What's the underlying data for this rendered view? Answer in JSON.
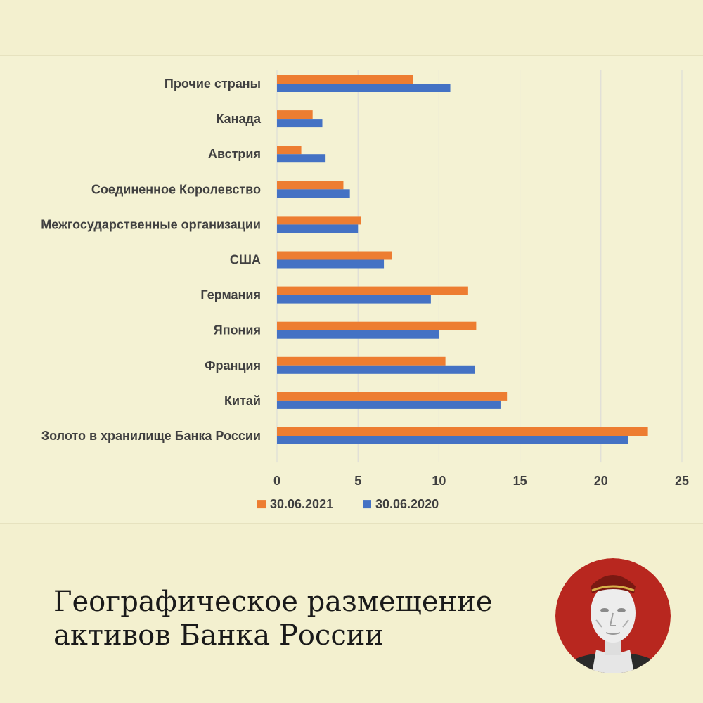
{
  "chart_data": {
    "type": "bar",
    "orientation": "horizontal",
    "categories": [
      "Прочие страны",
      "Канада",
      "Австрия",
      "Соединенное Королевство",
      "Межгосударственные организации",
      "США",
      "Германия",
      "Япония",
      "Франция",
      "Китай",
      "Золото в хранилище Банка России"
    ],
    "series": [
      {
        "name": "30.06.2021",
        "color": "#ed7d31",
        "values": [
          8.4,
          2.2,
          1.5,
          4.1,
          5.2,
          7.1,
          11.8,
          12.3,
          10.4,
          14.2,
          22.9
        ]
      },
      {
        "name": "30.06.2020",
        "color": "#4472c4",
        "values": [
          10.7,
          2.8,
          3.0,
          4.5,
          5.0,
          6.6,
          9.5,
          10.0,
          12.2,
          13.8,
          21.7
        ]
      }
    ],
    "xlim": [
      0,
      25
    ],
    "xticks": [
      0,
      5,
      10,
      15,
      20,
      25
    ],
    "grid": true,
    "legend_position": "bottom"
  },
  "caption": {
    "line1": "Географическое размещение",
    "line2": "активов Банка России"
  },
  "colors": {
    "background": "#f3f0cf",
    "gridline": "#d9d9d9"
  }
}
